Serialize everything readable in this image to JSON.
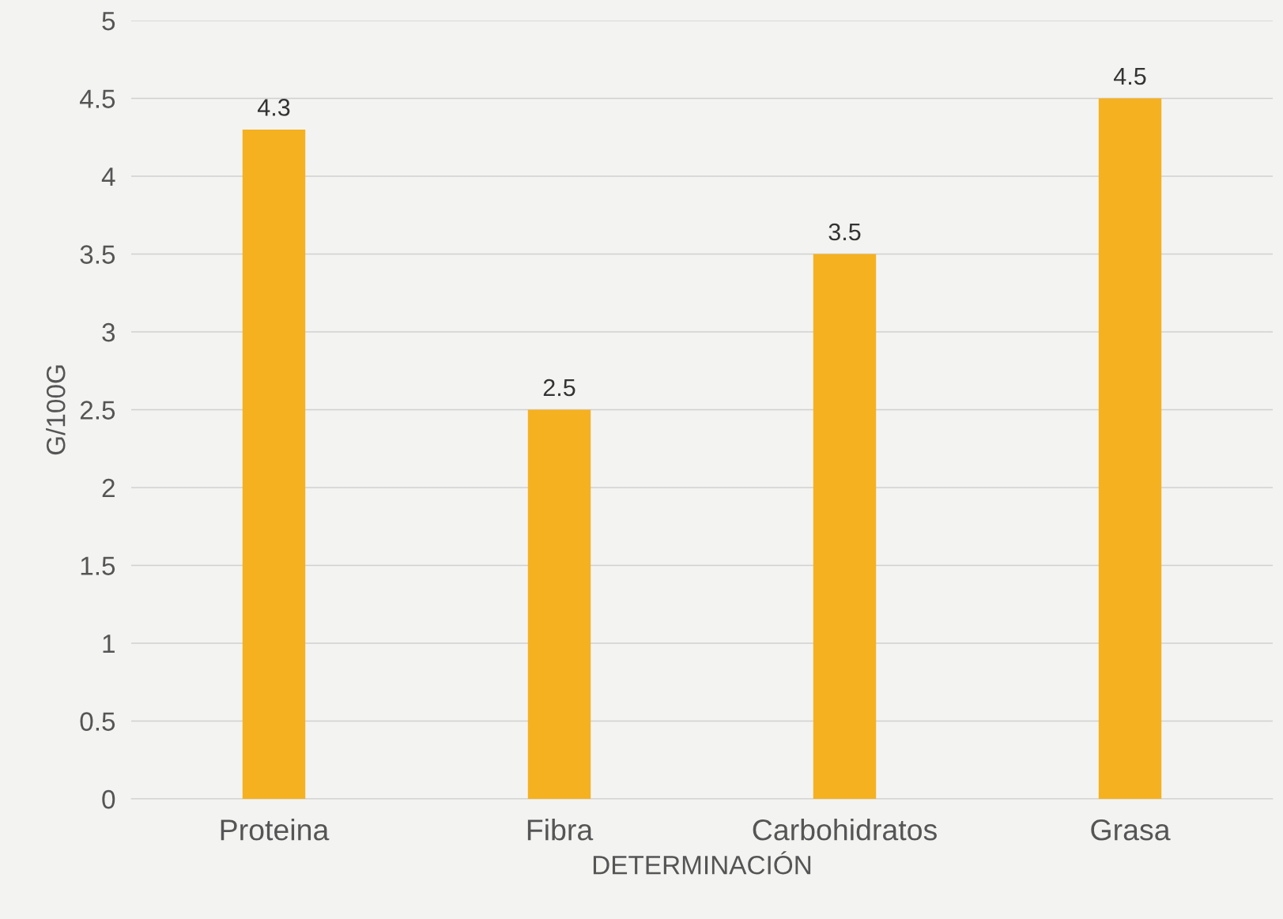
{
  "chart_data": {
    "type": "bar",
    "xlabel": "DETERMINACIÓN",
    "ylabel": "G/100G",
    "categories": [
      "Proteina",
      "Fibra",
      "Carbohidratos",
      "Grasa"
    ],
    "values": [
      4.3,
      2.5,
      3.5,
      4.5
    ],
    "color": "#f5b120",
    "ylim": [
      0,
      5
    ],
    "yticks": [
      0,
      0.5,
      1,
      1.5,
      2,
      2.5,
      3,
      3.5,
      4,
      4.5,
      5
    ],
    "grid": "y",
    "data_labels": true
  }
}
